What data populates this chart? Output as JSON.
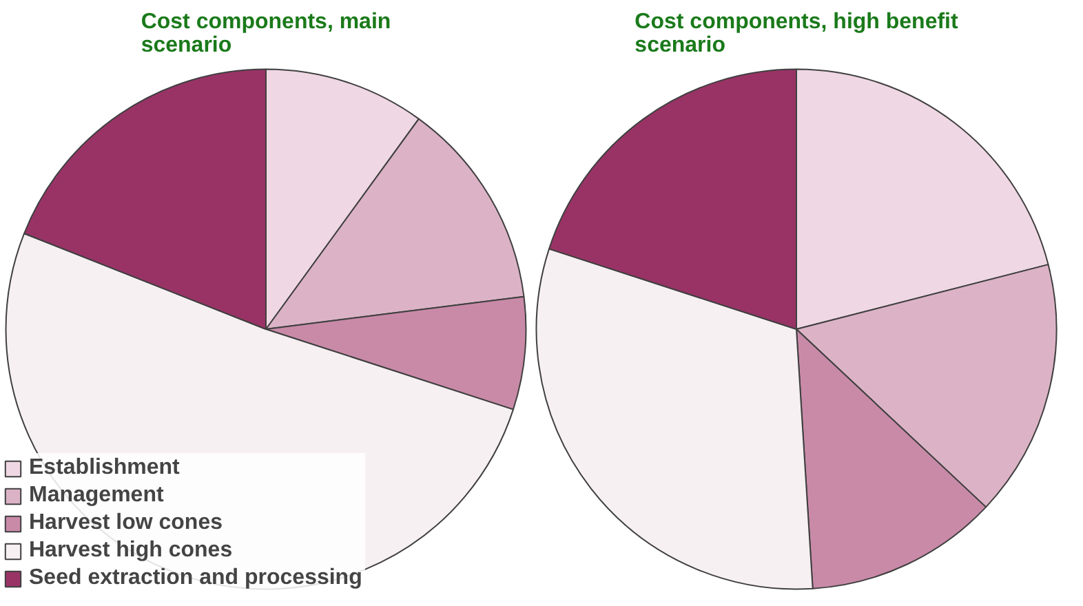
{
  "chart_data": [
    {
      "type": "pie",
      "title": "Cost components, main scenario",
      "categories": [
        "Establishment",
        "Management",
        "Harvest low cones",
        "Harvest high cones",
        "Seed extraction and processing"
      ],
      "values": [
        10,
        13,
        7,
        51,
        19
      ],
      "colors": [
        "#efd7e3",
        "#dcb3c6",
        "#c98aa8",
        "#f7f0f3",
        "#993366"
      ],
      "legend": "bottom left"
    },
    {
      "type": "pie",
      "title": "Cost components, high benefit scenario",
      "categories": [
        null,
        null,
        null,
        null,
        null
      ],
      "values": [
        21,
        16,
        12,
        31,
        20
      ],
      "colors": [
        "#efd7e3",
        "#dcb3c6",
        "#c98aa8",
        "#f7f0f3",
        "#993366"
      ]
    }
  ]
}
